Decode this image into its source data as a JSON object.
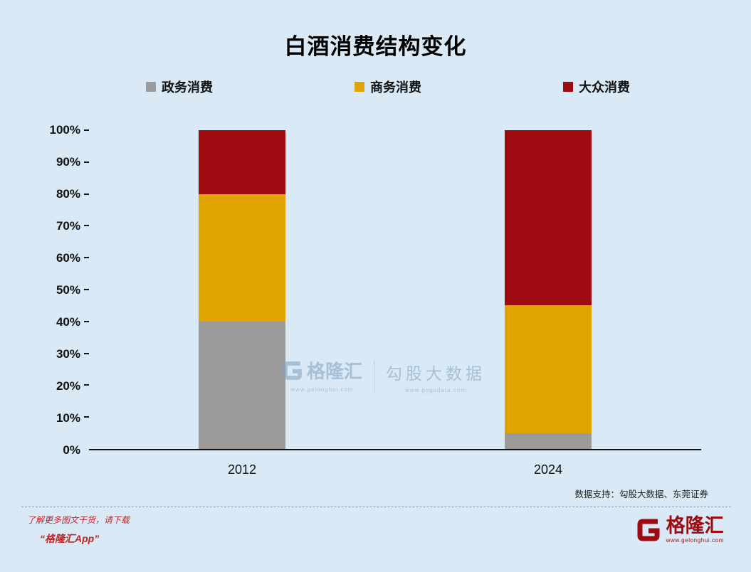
{
  "title": "白酒消费结构变化",
  "chart_data": {
    "type": "bar",
    "stacked": true,
    "title": "白酒消费结构变化",
    "categories": [
      "2012",
      "2024"
    ],
    "series": [
      {
        "name": "政务消费",
        "color": "#9b9b9b",
        "values": [
          40,
          5
        ]
      },
      {
        "name": "商务消费",
        "color": "#dfa400",
        "values": [
          40,
          40
        ]
      },
      {
        "name": "大众消费",
        "color": "#9e0b10",
        "values": [
          20,
          55
        ]
      }
    ],
    "ylim": [
      0,
      100
    ],
    "yticks": [
      "0%",
      "10%",
      "20%",
      "30%",
      "40%",
      "50%",
      "60%",
      "70%",
      "80%",
      "90%",
      "100%"
    ],
    "grid": false,
    "legend_position": "top"
  },
  "source_note": "数据支持：勾股大数据、东莞证券",
  "watermark": {
    "brand": "格隆汇",
    "brand_url": "www.gelonghui.com",
    "partner": "勾股大数据",
    "partner_url": "www.gogudata.com"
  },
  "footer": {
    "promo_line1": "了解更多图文干货，请下载",
    "promo_line2": "“格隆汇App”",
    "brand_name": "格隆汇",
    "brand_url": "www.gelonghui.com"
  },
  "colors": {
    "background": "#d9eaf6",
    "accent_red": "#9e0b10",
    "accent_gold": "#dfa400",
    "accent_gray": "#9b9b9b",
    "watermark_blue": "#7f9fbd"
  }
}
